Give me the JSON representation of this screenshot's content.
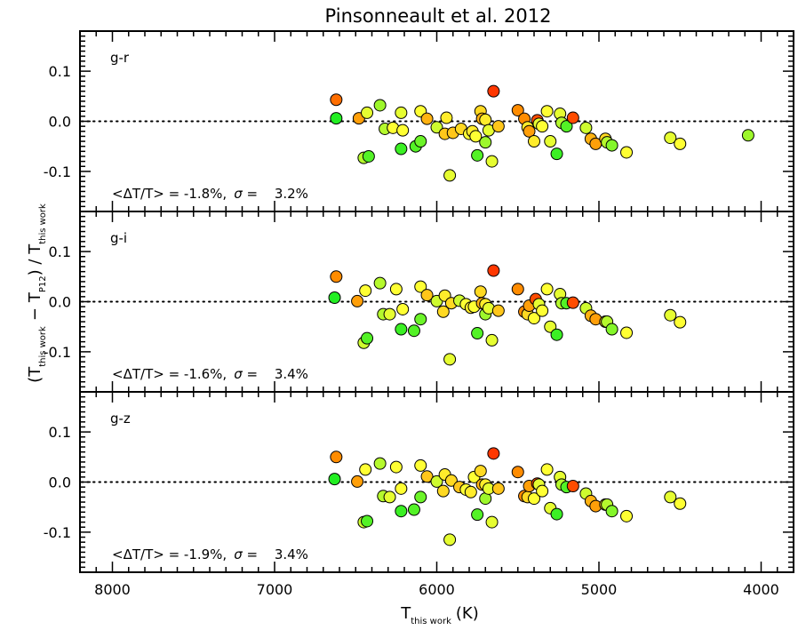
{
  "chart_data": {
    "type": "scatter",
    "title": "Pinsonneault et al. 2012",
    "xlabel": {
      "main": "T",
      "sub": "this work",
      "unit": "(K)"
    },
    "ylabel": {
      "open": "(T",
      "sub1": "this work",
      "minus": "−",
      "t2": "T",
      "sub2": "P12",
      "close": ") / T",
      "sub3": "this work"
    },
    "xlim": [
      8200,
      3800
    ],
    "x_axis_reversed": true,
    "ylim": [
      -0.18,
      0.18
    ],
    "x_ticks": [
      8000,
      7000,
      6000,
      5000,
      4000
    ],
    "y_ticks": [
      -0.1,
      0.0,
      0.1
    ],
    "y_tick_labels": [
      "-0.1",
      "0.0",
      "0.1"
    ],
    "zero_line": "dotted",
    "marker": "circle, black edge, fill colour from green (#22ee22) to yellow (#ffff33) to orange (#ff8c00) to red (#ff2200)",
    "panels": [
      {
        "name": "g-r",
        "annotation": {
          "open": "<",
          "delta": "ΔT",
          "slash": "/T> = ",
          "mean": "-1.8%,",
          "sigma_sym": "σ",
          "eq": " = ",
          "sigma": "3.2%"
        },
        "points": [
          {
            "x": 6620,
            "y": 0.043,
            "c": 0.82
          },
          {
            "x": 6620,
            "y": 0.006,
            "c": 0.0
          },
          {
            "x": 6480,
            "y": 0.006,
            "c": 0.7
          },
          {
            "x": 6450,
            "y": -0.073,
            "c": 0.3
          },
          {
            "x": 6420,
            "y": -0.07,
            "c": 0.1
          },
          {
            "x": 6430,
            "y": 0.017,
            "c": 0.4
          },
          {
            "x": 6350,
            "y": 0.032,
            "c": 0.25
          },
          {
            "x": 6320,
            "y": -0.015,
            "c": 0.3
          },
          {
            "x": 6270,
            "y": -0.013,
            "c": 0.45
          },
          {
            "x": 6220,
            "y": 0.017,
            "c": 0.4
          },
          {
            "x": 6210,
            "y": -0.018,
            "c": 0.45
          },
          {
            "x": 6220,
            "y": -0.055,
            "c": 0.05
          },
          {
            "x": 6130,
            "y": -0.05,
            "c": 0.1
          },
          {
            "x": 6100,
            "y": -0.04,
            "c": 0.15
          },
          {
            "x": 6100,
            "y": 0.02,
            "c": 0.45
          },
          {
            "x": 6060,
            "y": 0.005,
            "c": 0.65
          },
          {
            "x": 6000,
            "y": -0.012,
            "c": 0.35
          },
          {
            "x": 5950,
            "y": -0.025,
            "c": 0.6
          },
          {
            "x": 5940,
            "y": 0.007,
            "c": 0.5
          },
          {
            "x": 5920,
            "y": -0.108,
            "c": 0.4
          },
          {
            "x": 5900,
            "y": -0.023,
            "c": 0.6
          },
          {
            "x": 5850,
            "y": -0.015,
            "c": 0.55
          },
          {
            "x": 5800,
            "y": -0.025,
            "c": 0.45
          },
          {
            "x": 5780,
            "y": -0.02,
            "c": 0.5
          },
          {
            "x": 5760,
            "y": -0.03,
            "c": 0.45
          },
          {
            "x": 5750,
            "y": -0.068,
            "c": 0.1
          },
          {
            "x": 5730,
            "y": 0.02,
            "c": 0.55
          },
          {
            "x": 5720,
            "y": 0.005,
            "c": 0.65
          },
          {
            "x": 5700,
            "y": -0.042,
            "c": 0.25
          },
          {
            "x": 5700,
            "y": 0.003,
            "c": 0.5
          },
          {
            "x": 5680,
            "y": -0.018,
            "c": 0.4
          },
          {
            "x": 5660,
            "y": -0.08,
            "c": 0.4
          },
          {
            "x": 5650,
            "y": 0.06,
            "c": 0.95
          },
          {
            "x": 5620,
            "y": -0.01,
            "c": 0.6
          },
          {
            "x": 5500,
            "y": 0.022,
            "c": 0.75
          },
          {
            "x": 5460,
            "y": 0.005,
            "c": 0.75
          },
          {
            "x": 5440,
            "y": -0.012,
            "c": 0.5
          },
          {
            "x": 5430,
            "y": -0.02,
            "c": 0.7
          },
          {
            "x": 5400,
            "y": -0.04,
            "c": 0.5
          },
          {
            "x": 5380,
            "y": 0.002,
            "c": 0.9
          },
          {
            "x": 5370,
            "y": -0.005,
            "c": 0.4
          },
          {
            "x": 5350,
            "y": -0.01,
            "c": 0.45
          },
          {
            "x": 5320,
            "y": 0.02,
            "c": 0.45
          },
          {
            "x": 5300,
            "y": -0.04,
            "c": 0.4
          },
          {
            "x": 5260,
            "y": -0.065,
            "c": 0.05
          },
          {
            "x": 5240,
            "y": 0.015,
            "c": 0.4
          },
          {
            "x": 5230,
            "y": -0.003,
            "c": 0.3
          },
          {
            "x": 5200,
            "y": -0.01,
            "c": 0.1
          },
          {
            "x": 5160,
            "y": 0.007,
            "c": 0.9
          },
          {
            "x": 5080,
            "y": -0.013,
            "c": 0.35
          },
          {
            "x": 5050,
            "y": -0.035,
            "c": 0.65
          },
          {
            "x": 5020,
            "y": -0.045,
            "c": 0.7
          },
          {
            "x": 4960,
            "y": -0.035,
            "c": 0.55
          },
          {
            "x": 4950,
            "y": -0.042,
            "c": 0.3
          },
          {
            "x": 4920,
            "y": -0.048,
            "c": 0.2
          },
          {
            "x": 4830,
            "y": -0.062,
            "c": 0.45
          },
          {
            "x": 4560,
            "y": -0.033,
            "c": 0.4
          },
          {
            "x": 4500,
            "y": -0.045,
            "c": 0.45
          },
          {
            "x": 4080,
            "y": -0.028,
            "c": 0.25
          }
        ]
      },
      {
        "name": "g-i",
        "annotation": {
          "open": "<",
          "delta": "ΔT",
          "slash": "/T> = ",
          "mean": "-1.6%,",
          "sigma_sym": "σ",
          "eq": " = ",
          "sigma": "3.4%"
        },
        "points": [
          {
            "x": 6620,
            "y": 0.05,
            "c": 0.75
          },
          {
            "x": 6630,
            "y": 0.008,
            "c": 0.0
          },
          {
            "x": 6490,
            "y": 0.001,
            "c": 0.7
          },
          {
            "x": 6450,
            "y": -0.082,
            "c": 0.35
          },
          {
            "x": 6430,
            "y": -0.073,
            "c": 0.1
          },
          {
            "x": 6440,
            "y": 0.022,
            "c": 0.45
          },
          {
            "x": 6350,
            "y": 0.037,
            "c": 0.3
          },
          {
            "x": 6330,
            "y": -0.025,
            "c": 0.3
          },
          {
            "x": 6290,
            "y": -0.025,
            "c": 0.4
          },
          {
            "x": 6250,
            "y": 0.025,
            "c": 0.45
          },
          {
            "x": 6210,
            "y": -0.015,
            "c": 0.45
          },
          {
            "x": 6220,
            "y": -0.055,
            "c": 0.05
          },
          {
            "x": 6140,
            "y": -0.058,
            "c": 0.1
          },
          {
            "x": 6100,
            "y": -0.035,
            "c": 0.15
          },
          {
            "x": 6100,
            "y": 0.03,
            "c": 0.45
          },
          {
            "x": 6060,
            "y": 0.013,
            "c": 0.6
          },
          {
            "x": 6000,
            "y": 0.001,
            "c": 0.35
          },
          {
            "x": 5960,
            "y": -0.02,
            "c": 0.55
          },
          {
            "x": 5950,
            "y": 0.012,
            "c": 0.5
          },
          {
            "x": 5920,
            "y": -0.115,
            "c": 0.4
          },
          {
            "x": 5910,
            "y": -0.003,
            "c": 0.55
          },
          {
            "x": 5860,
            "y": 0.002,
            "c": 0.35
          },
          {
            "x": 5820,
            "y": -0.005,
            "c": 0.45
          },
          {
            "x": 5790,
            "y": -0.012,
            "c": 0.5
          },
          {
            "x": 5770,
            "y": -0.01,
            "c": 0.45
          },
          {
            "x": 5750,
            "y": -0.063,
            "c": 0.1
          },
          {
            "x": 5730,
            "y": 0.02,
            "c": 0.55
          },
          {
            "x": 5720,
            "y": -0.003,
            "c": 0.65
          },
          {
            "x": 5700,
            "y": -0.025,
            "c": 0.25
          },
          {
            "x": 5700,
            "y": -0.005,
            "c": 0.5
          },
          {
            "x": 5680,
            "y": -0.013,
            "c": 0.4
          },
          {
            "x": 5660,
            "y": -0.077,
            "c": 0.4
          },
          {
            "x": 5650,
            "y": 0.062,
            "c": 0.95
          },
          {
            "x": 5620,
            "y": -0.018,
            "c": 0.6
          },
          {
            "x": 5500,
            "y": 0.025,
            "c": 0.75
          },
          {
            "x": 5460,
            "y": -0.02,
            "c": 0.75
          },
          {
            "x": 5440,
            "y": -0.025,
            "c": 0.55
          },
          {
            "x": 5430,
            "y": -0.008,
            "c": 0.7
          },
          {
            "x": 5400,
            "y": -0.033,
            "c": 0.45
          },
          {
            "x": 5390,
            "y": 0.005,
            "c": 0.9
          },
          {
            "x": 5370,
            "y": -0.005,
            "c": 0.4
          },
          {
            "x": 5350,
            "y": -0.018,
            "c": 0.45
          },
          {
            "x": 5320,
            "y": 0.025,
            "c": 0.45
          },
          {
            "x": 5300,
            "y": -0.05,
            "c": 0.4
          },
          {
            "x": 5260,
            "y": -0.066,
            "c": 0.05
          },
          {
            "x": 5240,
            "y": 0.015,
            "c": 0.4
          },
          {
            "x": 5230,
            "y": -0.003,
            "c": 0.3
          },
          {
            "x": 5200,
            "y": -0.003,
            "c": 0.1
          },
          {
            "x": 5160,
            "y": -0.002,
            "c": 0.9
          },
          {
            "x": 5080,
            "y": -0.013,
            "c": 0.35
          },
          {
            "x": 5050,
            "y": -0.028,
            "c": 0.65
          },
          {
            "x": 5020,
            "y": -0.035,
            "c": 0.7
          },
          {
            "x": 4960,
            "y": -0.04,
            "c": 0.55
          },
          {
            "x": 4950,
            "y": -0.04,
            "c": 0.3
          },
          {
            "x": 4920,
            "y": -0.055,
            "c": 0.2
          },
          {
            "x": 4830,
            "y": -0.062,
            "c": 0.45
          },
          {
            "x": 4560,
            "y": -0.027,
            "c": 0.4
          },
          {
            "x": 4500,
            "y": -0.041,
            "c": 0.45
          }
        ]
      },
      {
        "name": "g-z",
        "annotation": {
          "open": "<",
          "delta": "ΔT",
          "slash": "/T> = ",
          "mean": "-1.9%,",
          "sigma_sym": "σ",
          "eq": " = ",
          "sigma": "3.4%"
        },
        "points": [
          {
            "x": 6620,
            "y": 0.05,
            "c": 0.75
          },
          {
            "x": 6630,
            "y": 0.006,
            "c": 0.0
          },
          {
            "x": 6490,
            "y": 0.001,
            "c": 0.7
          },
          {
            "x": 6450,
            "y": -0.08,
            "c": 0.35
          },
          {
            "x": 6430,
            "y": -0.078,
            "c": 0.1
          },
          {
            "x": 6440,
            "y": 0.025,
            "c": 0.45
          },
          {
            "x": 6350,
            "y": 0.037,
            "c": 0.3
          },
          {
            "x": 6330,
            "y": -0.028,
            "c": 0.3
          },
          {
            "x": 6290,
            "y": -0.03,
            "c": 0.4
          },
          {
            "x": 6250,
            "y": 0.03,
            "c": 0.45
          },
          {
            "x": 6220,
            "y": -0.013,
            "c": 0.45
          },
          {
            "x": 6220,
            "y": -0.058,
            "c": 0.05
          },
          {
            "x": 6140,
            "y": -0.055,
            "c": 0.1
          },
          {
            "x": 6100,
            "y": -0.03,
            "c": 0.15
          },
          {
            "x": 6100,
            "y": 0.033,
            "c": 0.45
          },
          {
            "x": 6060,
            "y": 0.011,
            "c": 0.6
          },
          {
            "x": 6000,
            "y": 0.001,
            "c": 0.35
          },
          {
            "x": 5960,
            "y": -0.018,
            "c": 0.55
          },
          {
            "x": 5950,
            "y": 0.015,
            "c": 0.5
          },
          {
            "x": 5920,
            "y": -0.115,
            "c": 0.4
          },
          {
            "x": 5910,
            "y": 0.003,
            "c": 0.55
          },
          {
            "x": 5860,
            "y": -0.01,
            "c": 0.6
          },
          {
            "x": 5820,
            "y": -0.015,
            "c": 0.45
          },
          {
            "x": 5790,
            "y": -0.02,
            "c": 0.5
          },
          {
            "x": 5770,
            "y": 0.01,
            "c": 0.45
          },
          {
            "x": 5750,
            "y": -0.065,
            "c": 0.1
          },
          {
            "x": 5730,
            "y": 0.022,
            "c": 0.55
          },
          {
            "x": 5720,
            "y": -0.005,
            "c": 0.65
          },
          {
            "x": 5700,
            "y": -0.033,
            "c": 0.25
          },
          {
            "x": 5700,
            "y": -0.005,
            "c": 0.5
          },
          {
            "x": 5680,
            "y": -0.013,
            "c": 0.4
          },
          {
            "x": 5660,
            "y": -0.08,
            "c": 0.4
          },
          {
            "x": 5650,
            "y": 0.057,
            "c": 0.95
          },
          {
            "x": 5620,
            "y": -0.013,
            "c": 0.6
          },
          {
            "x": 5500,
            "y": 0.02,
            "c": 0.75
          },
          {
            "x": 5460,
            "y": -0.028,
            "c": 0.75
          },
          {
            "x": 5440,
            "y": -0.03,
            "c": 0.55
          },
          {
            "x": 5430,
            "y": -0.008,
            "c": 0.7
          },
          {
            "x": 5400,
            "y": -0.033,
            "c": 0.45
          },
          {
            "x": 5380,
            "y": -0.003,
            "c": 0.9
          },
          {
            "x": 5370,
            "y": -0.005,
            "c": 0.4
          },
          {
            "x": 5350,
            "y": -0.018,
            "c": 0.45
          },
          {
            "x": 5320,
            "y": 0.025,
            "c": 0.45
          },
          {
            "x": 5300,
            "y": -0.052,
            "c": 0.4
          },
          {
            "x": 5260,
            "y": -0.064,
            "c": 0.05
          },
          {
            "x": 5240,
            "y": 0.01,
            "c": 0.4
          },
          {
            "x": 5230,
            "y": -0.005,
            "c": 0.3
          },
          {
            "x": 5200,
            "y": -0.01,
            "c": 0.1
          },
          {
            "x": 5160,
            "y": -0.008,
            "c": 0.9
          },
          {
            "x": 5080,
            "y": -0.023,
            "c": 0.35
          },
          {
            "x": 5050,
            "y": -0.038,
            "c": 0.65
          },
          {
            "x": 5020,
            "y": -0.048,
            "c": 0.7
          },
          {
            "x": 4960,
            "y": -0.045,
            "c": 0.55
          },
          {
            "x": 4950,
            "y": -0.045,
            "c": 0.3
          },
          {
            "x": 4920,
            "y": -0.058,
            "c": 0.2
          },
          {
            "x": 4830,
            "y": -0.068,
            "c": 0.45
          },
          {
            "x": 4560,
            "y": -0.03,
            "c": 0.4
          },
          {
            "x": 4500,
            "y": -0.043,
            "c": 0.45
          }
        ]
      }
    ]
  }
}
